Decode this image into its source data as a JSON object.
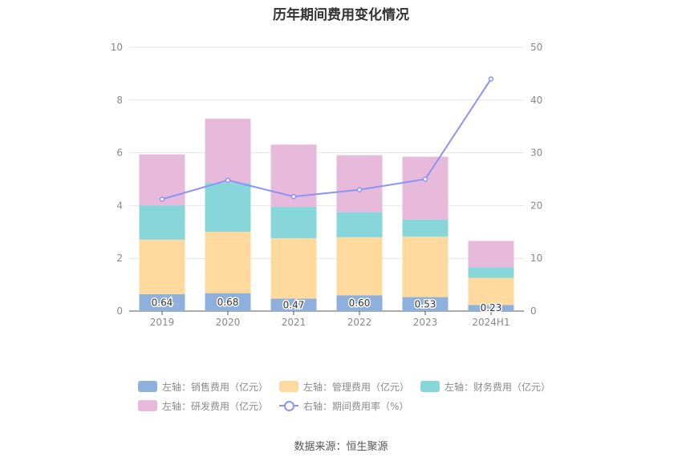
{
  "title": "历年期间费用变化情况",
  "source": "数据来源：恒生聚源",
  "chart_data": {
    "type": "bar",
    "stacked": true,
    "categories": [
      "2019",
      "2020",
      "2021",
      "2022",
      "2023",
      "2024H1"
    ],
    "y_left": {
      "min": 0,
      "max": 10,
      "ticks": [
        0,
        2,
        4,
        6,
        8,
        10
      ]
    },
    "y_right": {
      "min": 0,
      "max": 50,
      "ticks": [
        0,
        10,
        20,
        30,
        40,
        50
      ]
    },
    "grid": true,
    "legend_position": "bottom",
    "series": [
      {
        "name": "左轴：销售费用（亿元）",
        "axis": "left",
        "color": "#8eb0dd",
        "values": [
          0.64,
          0.68,
          0.47,
          0.6,
          0.53,
          0.23
        ],
        "labels": [
          "0.64",
          "0.68",
          "0.47",
          "0.60",
          "0.53",
          "0.23"
        ]
      },
      {
        "name": "左轴：管理费用（亿元）",
        "axis": "left",
        "color": "#ffd99e",
        "values": [
          2.07,
          2.33,
          2.29,
          2.2,
          2.29,
          1.03
        ]
      },
      {
        "name": "左轴：财务费用（亿元）",
        "axis": "left",
        "color": "#87d6da",
        "values": [
          1.3,
          1.85,
          1.19,
          0.95,
          0.65,
          0.4
        ]
      },
      {
        "name": "左轴：研发费用（亿元）",
        "axis": "left",
        "color": "#e7b9da",
        "values": [
          1.93,
          2.43,
          2.36,
          2.16,
          2.38,
          1.0
        ]
      },
      {
        "name": "右轴：期间费用率（%）",
        "axis": "right",
        "type": "line",
        "color": "#8b93f5",
        "values": [
          21.2,
          24.8,
          21.7,
          23.0,
          25.0,
          44.0
        ]
      }
    ]
  }
}
